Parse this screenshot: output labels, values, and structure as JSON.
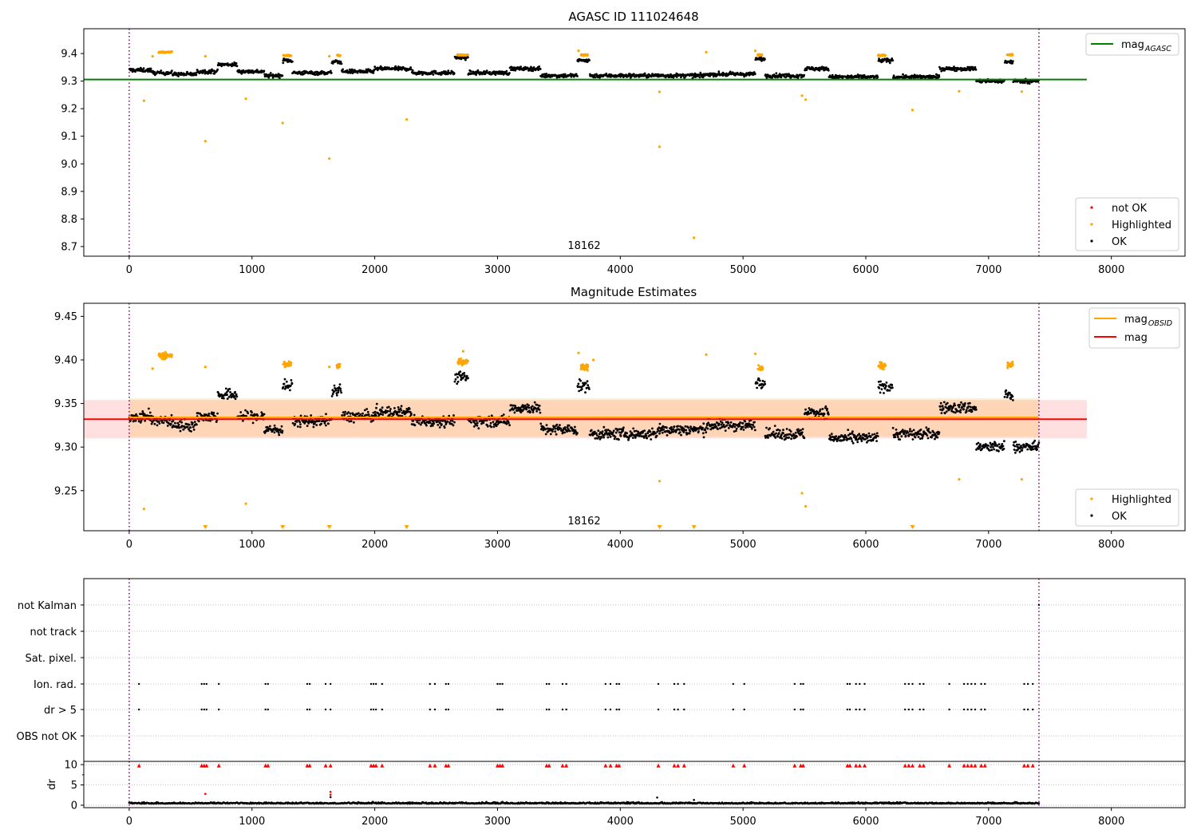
{
  "chart_data": [
    {
      "type": "scatter",
      "title": "AGASC ID 111024648",
      "annotation": "18162",
      "xlim": [
        -370,
        8600
      ],
      "ylim": [
        8.665,
        9.49
      ],
      "xticks": [
        0,
        1000,
        2000,
        3000,
        4000,
        5000,
        6000,
        7000,
        8000
      ],
      "yticks": [
        8.7,
        8.8,
        8.9,
        9.0,
        9.1,
        9.2,
        9.3,
        9.4
      ],
      "ytick_labels": [
        "8.7",
        "8.8",
        "8.9",
        "9.0",
        "9.1",
        "9.2",
        "9.3",
        "9.4"
      ],
      "vlines": [
        0,
        7410
      ],
      "hline": {
        "label": "mag",
        "label_sub": "AGASC",
        "y": 9.306,
        "x_range": [
          -370,
          7800
        ],
        "color": "#008000"
      },
      "legend_lines": [
        {
          "label": "mag",
          "sub": "AGASC",
          "color": "#008000"
        }
      ],
      "legend_points": [
        {
          "label": "not OK",
          "color": "#ff0000"
        },
        {
          "label": "Highlighted",
          "color": "#ffa500"
        },
        {
          "label": "OK",
          "color": "#000000"
        }
      ],
      "ok_segments": [
        {
          "x0": 0,
          "x1": 180,
          "y": 9.34
        },
        {
          "x0": 180,
          "x1": 350,
          "y": 9.33
        },
        {
          "x0": 350,
          "x1": 550,
          "y": 9.325
        },
        {
          "x0": 550,
          "x1": 720,
          "y": 9.335
        },
        {
          "x0": 720,
          "x1": 880,
          "y": 9.36
        },
        {
          "x0": 880,
          "x1": 1100,
          "y": 9.335
        },
        {
          "x0": 1100,
          "x1": 1250,
          "y": 9.32
        },
        {
          "x0": 1250,
          "x1": 1330,
          "y": 9.375
        },
        {
          "x0": 1330,
          "x1": 1650,
          "y": 9.33
        },
        {
          "x0": 1650,
          "x1": 1730,
          "y": 9.37
        },
        {
          "x0": 1730,
          "x1": 2000,
          "y": 9.335
        },
        {
          "x0": 2000,
          "x1": 2300,
          "y": 9.345
        },
        {
          "x0": 2300,
          "x1": 2650,
          "y": 9.33
        },
        {
          "x0": 2650,
          "x1": 2760,
          "y": 9.385
        },
        {
          "x0": 2760,
          "x1": 3100,
          "y": 9.33
        },
        {
          "x0": 3100,
          "x1": 3350,
          "y": 9.345
        },
        {
          "x0": 3350,
          "x1": 3650,
          "y": 9.32
        },
        {
          "x0": 3650,
          "x1": 3750,
          "y": 9.375
        },
        {
          "x0": 3750,
          "x1": 4300,
          "y": 9.32
        },
        {
          "x0": 4300,
          "x1": 4700,
          "y": 9.32
        },
        {
          "x0": 4700,
          "x1": 5100,
          "y": 9.325
        },
        {
          "x0": 5100,
          "x1": 5180,
          "y": 9.38
        },
        {
          "x0": 5180,
          "x1": 5500,
          "y": 9.32
        },
        {
          "x0": 5500,
          "x1": 5700,
          "y": 9.345
        },
        {
          "x0": 5700,
          "x1": 6100,
          "y": 9.315
        },
        {
          "x0": 6100,
          "x1": 6220,
          "y": 9.375
        },
        {
          "x0": 6220,
          "x1": 6600,
          "y": 9.315
        },
        {
          "x0": 6600,
          "x1": 6900,
          "y": 9.345
        },
        {
          "x0": 6900,
          "x1": 7130,
          "y": 9.3
        },
        {
          "x0": 7130,
          "x1": 7200,
          "y": 9.37
        },
        {
          "x0": 7200,
          "x1": 7410,
          "y": 9.3
        }
      ],
      "highlight_clusters": [
        {
          "x0": 240,
          "x1": 350,
          "y": 9.405
        },
        {
          "x0": 1250,
          "x1": 1320,
          "y": 9.393
        },
        {
          "x0": 1690,
          "x1": 1720,
          "y": 9.393
        },
        {
          "x0": 2670,
          "x1": 2760,
          "y": 9.395
        },
        {
          "x0": 3680,
          "x1": 3740,
          "y": 9.395
        },
        {
          "x0": 5120,
          "x1": 5160,
          "y": 9.395
        },
        {
          "x0": 6100,
          "x1": 6160,
          "y": 9.393
        },
        {
          "x0": 7150,
          "x1": 7200,
          "y": 9.395
        }
      ],
      "highlight_outliers": [
        {
          "x": 120,
          "y": 9.229
        },
        {
          "x": 620,
          "y": 9.082
        },
        {
          "x": 950,
          "y": 9.236
        },
        {
          "x": 1250,
          "y": 9.148
        },
        {
          "x": 1630,
          "y": 9.019
        },
        {
          "x": 2260,
          "y": 9.161
        },
        {
          "x": 4320,
          "y": 9.062
        },
        {
          "x": 4320,
          "y": 9.261
        },
        {
          "x": 4600,
          "y": 8.732
        },
        {
          "x": 5480,
          "y": 9.247
        },
        {
          "x": 5510,
          "y": 9.233
        },
        {
          "x": 6380,
          "y": 9.195
        },
        {
          "x": 6760,
          "y": 9.263
        },
        {
          "x": 7270,
          "y": 9.262
        },
        {
          "x": 190,
          "y": 9.39
        },
        {
          "x": 620,
          "y": 9.39
        },
        {
          "x": 1630,
          "y": 9.39
        },
        {
          "x": 3660,
          "y": 9.41
        },
        {
          "x": 4700,
          "y": 9.405
        },
        {
          "x": 5100,
          "y": 9.41
        }
      ]
    },
    {
      "type": "scatter",
      "title": "Magnitude Estimates",
      "annotation": "18162",
      "xlim": [
        -370,
        8600
      ],
      "ylim": [
        9.204,
        9.465
      ],
      "xticks": [
        0,
        1000,
        2000,
        3000,
        4000,
        5000,
        6000,
        7000,
        8000
      ],
      "yticks": [
        9.25,
        9.3,
        9.35,
        9.4,
        9.45
      ],
      "ytick_labels": [
        "9.25",
        "9.30",
        "9.35",
        "9.40",
        "9.45"
      ],
      "vlines": [
        0,
        7410
      ],
      "mag": {
        "y": 9.332,
        "band": [
          9.31,
          9.354
        ],
        "x_range": [
          -370,
          7800
        ],
        "color": "#ff0000"
      },
      "mag_obsid": {
        "y": 9.334,
        "band": [
          9.312,
          9.356
        ],
        "x_range": [
          0,
          7410
        ],
        "color": "#ffa500"
      },
      "legend_lines": [
        {
          "label": "mag",
          "sub": "OBSID",
          "color": "#ffa500"
        },
        {
          "label": "mag",
          "sub": "",
          "color": "#ff0000"
        }
      ],
      "legend_points": [
        {
          "label": "Highlighted",
          "color": "#ffa500"
        },
        {
          "label": "OK",
          "color": "#000000"
        }
      ],
      "ok_segments": [
        {
          "x0": 0,
          "x1": 180,
          "y": 9.335
        },
        {
          "x0": 180,
          "x1": 350,
          "y": 9.33
        },
        {
          "x0": 350,
          "x1": 550,
          "y": 9.325
        },
        {
          "x0": 550,
          "x1": 720,
          "y": 9.335
        },
        {
          "x0": 720,
          "x1": 880,
          "y": 9.36
        },
        {
          "x0": 880,
          "x1": 1100,
          "y": 9.335
        },
        {
          "x0": 1100,
          "x1": 1250,
          "y": 9.32
        },
        {
          "x0": 1250,
          "x1": 1330,
          "y": 9.37
        },
        {
          "x0": 1330,
          "x1": 1650,
          "y": 9.33
        },
        {
          "x0": 1650,
          "x1": 1730,
          "y": 9.365
        },
        {
          "x0": 1730,
          "x1": 2000,
          "y": 9.335
        },
        {
          "x0": 2000,
          "x1": 2300,
          "y": 9.34
        },
        {
          "x0": 2300,
          "x1": 2650,
          "y": 9.33
        },
        {
          "x0": 2650,
          "x1": 2760,
          "y": 9.38
        },
        {
          "x0": 2760,
          "x1": 3100,
          "y": 9.33
        },
        {
          "x0": 3100,
          "x1": 3350,
          "y": 9.345
        },
        {
          "x0": 3350,
          "x1": 3650,
          "y": 9.32
        },
        {
          "x0": 3650,
          "x1": 3750,
          "y": 9.37
        },
        {
          "x0": 3750,
          "x1": 4300,
          "y": 9.315
        },
        {
          "x0": 4300,
          "x1": 4700,
          "y": 9.32
        },
        {
          "x0": 4700,
          "x1": 5100,
          "y": 9.325
        },
        {
          "x0": 5100,
          "x1": 5180,
          "y": 9.375
        },
        {
          "x0": 5180,
          "x1": 5500,
          "y": 9.315
        },
        {
          "x0": 5500,
          "x1": 5700,
          "y": 9.34
        },
        {
          "x0": 5700,
          "x1": 6100,
          "y": 9.31
        },
        {
          "x0": 6100,
          "x1": 6220,
          "y": 9.37
        },
        {
          "x0": 6220,
          "x1": 6600,
          "y": 9.315
        },
        {
          "x0": 6600,
          "x1": 6900,
          "y": 9.345
        },
        {
          "x0": 6900,
          "x1": 7130,
          "y": 9.3
        },
        {
          "x0": 7130,
          "x1": 7200,
          "y": 9.36
        },
        {
          "x0": 7200,
          "x1": 7410,
          "y": 9.3
        }
      ],
      "highlight_clusters": [
        {
          "x0": 240,
          "x1": 350,
          "y": 9.405
        },
        {
          "x0": 1250,
          "x1": 1320,
          "y": 9.395
        },
        {
          "x0": 1690,
          "x1": 1720,
          "y": 9.393
        },
        {
          "x0": 2670,
          "x1": 2760,
          "y": 9.398
        },
        {
          "x0": 3680,
          "x1": 3740,
          "y": 9.392
        },
        {
          "x0": 5120,
          "x1": 5160,
          "y": 9.39
        },
        {
          "x0": 6100,
          "x1": 6160,
          "y": 9.393
        },
        {
          "x0": 7150,
          "x1": 7200,
          "y": 9.395
        }
      ],
      "highlight_outliers": [
        {
          "x": 120,
          "y": 9.229
        },
        {
          "x": 950,
          "y": 9.235
        },
        {
          "x": 4320,
          "y": 9.261
        },
        {
          "x": 5480,
          "y": 9.247
        },
        {
          "x": 5510,
          "y": 9.232
        },
        {
          "x": 6760,
          "y": 9.263
        },
        {
          "x": 7270,
          "y": 9.263
        },
        {
          "x": 190,
          "y": 9.39
        },
        {
          "x": 620,
          "y": 9.392
        },
        {
          "x": 1630,
          "y": 9.392
        },
        {
          "x": 3660,
          "y": 9.408
        },
        {
          "x": 4700,
          "y": 9.406
        },
        {
          "x": 5100,
          "y": 9.407
        },
        {
          "x": 2720,
          "y": 9.41
        },
        {
          "x": 3780,
          "y": 9.4
        }
      ],
      "below_range_markers": [
        620,
        1250,
        1630,
        2260,
        4320,
        4600,
        6380
      ]
    },
    {
      "type": "scatter",
      "title": "",
      "xlim": [
        -370,
        8600
      ],
      "vlines": [
        0,
        7410
      ],
      "flag_rows": [
        "not Kalman",
        "not track",
        "Sat. pixel.",
        "Ion. rad.",
        "dr > 5",
        "OBS not OK"
      ],
      "flag_x": [
        80,
        590,
        610,
        630,
        730,
        1110,
        1130,
        1450,
        1470,
        1600,
        1640,
        1970,
        1990,
        2010,
        2060,
        2450,
        2490,
        2580,
        2600,
        3000,
        3020,
        3040,
        3400,
        3420,
        3530,
        3560,
        3880,
        3920,
        3970,
        3990,
        4310,
        4440,
        4470,
        4520,
        4920,
        5010,
        5420,
        5470,
        5490,
        5850,
        5870,
        5920,
        5950,
        5990,
        6320,
        6350,
        6380,
        6440,
        6470,
        6680,
        6800,
        6830,
        6860,
        6890,
        6940,
        6970,
        7290,
        7320,
        7360
      ],
      "dr_panel": {
        "ylabel": "dr",
        "yticks": [
          0,
          5,
          10
        ],
        "ylim": [
          -0.6,
          10.8
        ],
        "baseline": 0.4,
        "red_level": 9.7,
        "red_x": [
          80,
          590,
          610,
          630,
          730,
          1110,
          1130,
          1450,
          1470,
          1600,
          1640,
          1970,
          1990,
          2010,
          2060,
          2450,
          2490,
          2580,
          2600,
          3000,
          3020,
          3040,
          3400,
          3420,
          3530,
          3560,
          3880,
          3920,
          3970,
          3990,
          4310,
          4440,
          4470,
          4520,
          4920,
          5010,
          5420,
          5470,
          5490,
          5850,
          5870,
          5920,
          5950,
          5990,
          6320,
          6350,
          6380,
          6440,
          6470,
          6680,
          6800,
          6830,
          6860,
          6890,
          6940,
          6970,
          7290,
          7320,
          7360
        ],
        "red_outliers": [
          {
            "x": 620,
            "y": 2.8
          },
          {
            "x": 1640,
            "y": 3.3
          },
          {
            "x": 1640,
            "y": 2.6
          }
        ],
        "black_outliers": [
          {
            "x": 4300,
            "y": 1.9
          },
          {
            "x": 4600,
            "y": 1.3
          },
          {
            "x": 1640,
            "y": 2.0
          }
        ]
      },
      "xticks": [
        0,
        1000,
        2000,
        3000,
        4000,
        5000,
        6000,
        7000,
        8000
      ]
    }
  ]
}
